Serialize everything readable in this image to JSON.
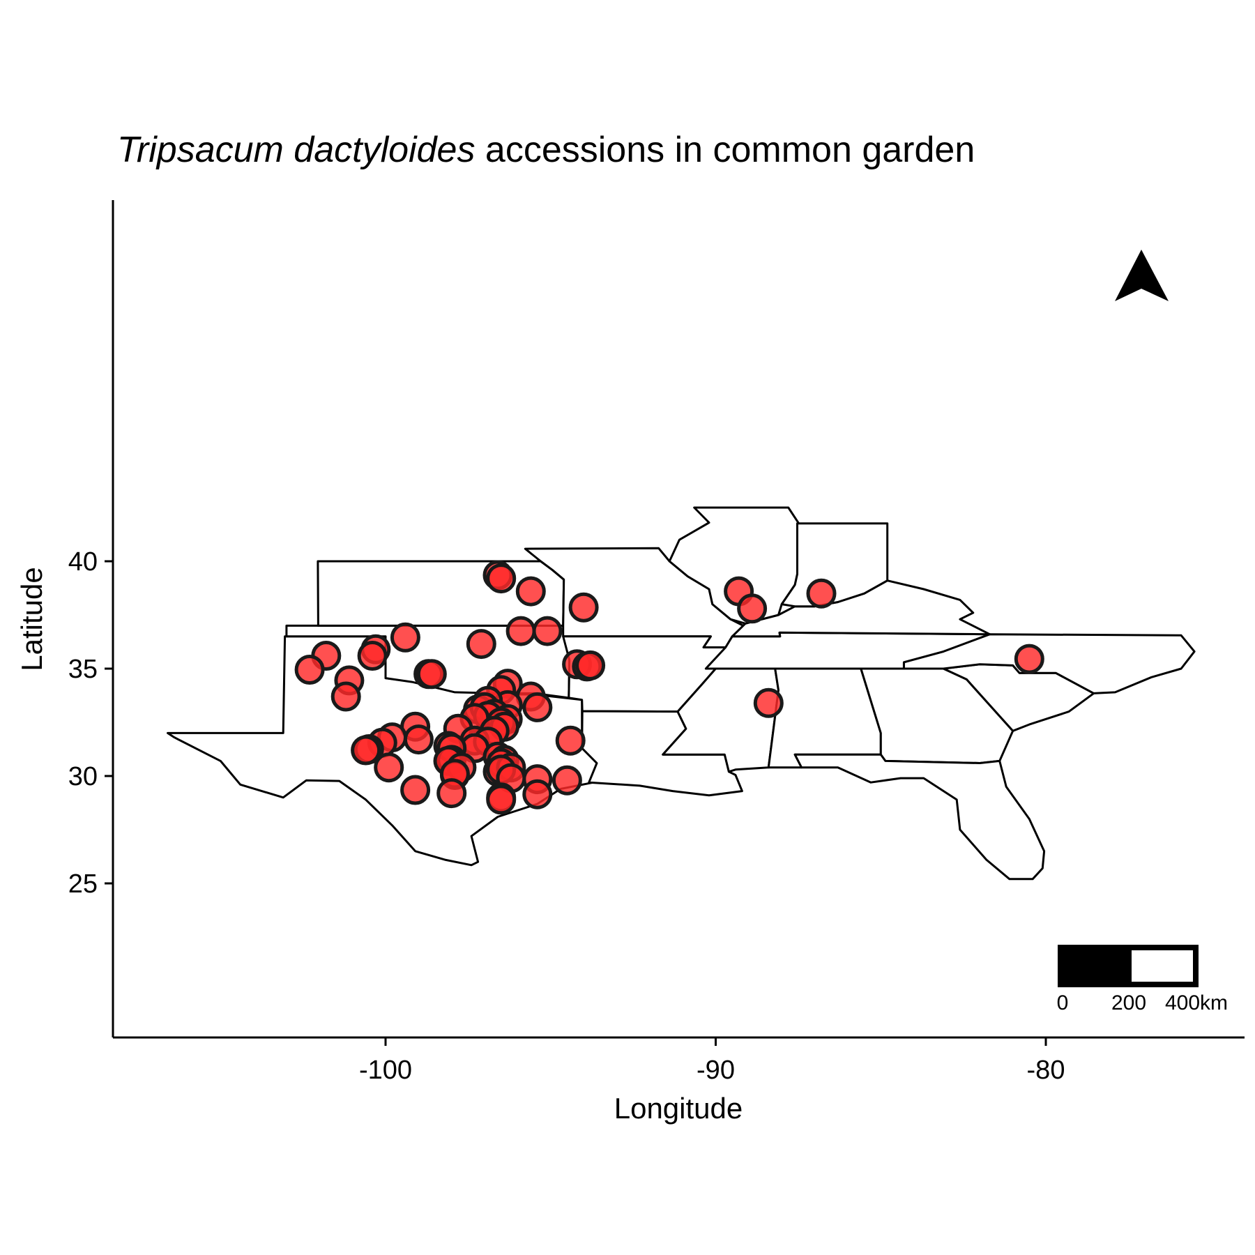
{
  "title": {
    "species": "Tripsacum dactyloides",
    "rest": " accessions in common garden"
  },
  "axes": {
    "xlabel": "Longitude",
    "ylabel": "Latitude",
    "xticks": [
      -100,
      -90,
      -80
    ],
    "xtick_labels": [
      "-100",
      "-90",
      "-80"
    ],
    "yticks": [
      25,
      30,
      35,
      40
    ],
    "ytick_labels": [
      "25",
      "30",
      "35",
      "40"
    ],
    "xlim": [
      -108.2,
      -74.6
    ],
    "ylim": [
      24.0,
      43.3
    ]
  },
  "scale_bar": {
    "labels": [
      "0",
      "200",
      "400km"
    ]
  },
  "north_arrow": "north-arrow-icon",
  "colors": {
    "point_fill": "#ff2a2a",
    "point_stroke": "#1a1a1a",
    "border": "#000000"
  },
  "chart_data": {
    "type": "scatter",
    "title": "Tripsacum dactyloides accessions in common garden",
    "xlabel": "Longitude",
    "ylabel": "Latitude",
    "xlim": [
      -108.2,
      -74.6
    ],
    "ylim": [
      24.0,
      43.3
    ],
    "grid": false,
    "points": [
      {
        "lon": -96.6,
        "lat": 39.35
      },
      {
        "lon": -96.5,
        "lat": 39.2
      },
      {
        "lon": -95.6,
        "lat": 38.6
      },
      {
        "lon": -94.0,
        "lat": 37.85
      },
      {
        "lon": -95.9,
        "lat": 36.75
      },
      {
        "lon": -95.1,
        "lat": 36.75
      },
      {
        "lon": -97.1,
        "lat": 36.15
      },
      {
        "lon": -99.4,
        "lat": 36.45
      },
      {
        "lon": -100.3,
        "lat": 35.9
      },
      {
        "lon": -100.4,
        "lat": 35.6
      },
      {
        "lon": -101.8,
        "lat": 35.6
      },
      {
        "lon": -102.3,
        "lat": 34.95
      },
      {
        "lon": -101.1,
        "lat": 34.45
      },
      {
        "lon": -101.2,
        "lat": 33.7
      },
      {
        "lon": -98.7,
        "lat": 34.75
      },
      {
        "lon": -98.6,
        "lat": 34.75
      },
      {
        "lon": -94.2,
        "lat": 35.2
      },
      {
        "lon": -93.9,
        "lat": 35.1
      },
      {
        "lon": -93.8,
        "lat": 35.15
      },
      {
        "lon": -89.3,
        "lat": 38.6
      },
      {
        "lon": -88.9,
        "lat": 37.8
      },
      {
        "lon": -86.8,
        "lat": 38.5
      },
      {
        "lon": -88.4,
        "lat": 33.4
      },
      {
        "lon": -80.5,
        "lat": 35.45
      },
      {
        "lon": -96.3,
        "lat": 34.3
      },
      {
        "lon": -96.5,
        "lat": 34.0
      },
      {
        "lon": -95.6,
        "lat": 33.7
      },
      {
        "lon": -95.4,
        "lat": 33.2
      },
      {
        "lon": -96.3,
        "lat": 33.3
      },
      {
        "lon": -96.9,
        "lat": 33.5
      },
      {
        "lon": -97.2,
        "lat": 33.1
      },
      {
        "lon": -97.0,
        "lat": 33.2
      },
      {
        "lon": -96.7,
        "lat": 32.9
      },
      {
        "lon": -96.9,
        "lat": 32.8
      },
      {
        "lon": -97.3,
        "lat": 32.7
      },
      {
        "lon": -96.3,
        "lat": 32.65
      },
      {
        "lon": -96.5,
        "lat": 32.5
      },
      {
        "lon": -96.4,
        "lat": 32.3
      },
      {
        "lon": -96.7,
        "lat": 32.1
      },
      {
        "lon": -97.8,
        "lat": 32.2
      },
      {
        "lon": -99.1,
        "lat": 32.3
      },
      {
        "lon": -99.8,
        "lat": 31.8
      },
      {
        "lon": -99.0,
        "lat": 31.7
      },
      {
        "lon": -100.1,
        "lat": 31.55
      },
      {
        "lon": -100.5,
        "lat": 31.25
      },
      {
        "lon": -100.6,
        "lat": 31.2
      },
      {
        "lon": -97.3,
        "lat": 31.65
      },
      {
        "lon": -96.9,
        "lat": 31.6
      },
      {
        "lon": -97.3,
        "lat": 31.3
      },
      {
        "lon": -98.1,
        "lat": 31.4
      },
      {
        "lon": -98.0,
        "lat": 31.3
      },
      {
        "lon": -98.0,
        "lat": 30.75
      },
      {
        "lon": -98.1,
        "lat": 30.7
      },
      {
        "lon": -97.7,
        "lat": 30.4
      },
      {
        "lon": -97.9,
        "lat": 30.05
      },
      {
        "lon": -97.9,
        "lat": 30.1
      },
      {
        "lon": -96.6,
        "lat": 30.9
      },
      {
        "lon": -96.4,
        "lat": 30.75
      },
      {
        "lon": -96.5,
        "lat": 30.6
      },
      {
        "lon": -96.6,
        "lat": 30.2
      },
      {
        "lon": -96.2,
        "lat": 30.4
      },
      {
        "lon": -96.5,
        "lat": 30.3
      },
      {
        "lon": -96.2,
        "lat": 29.9
      },
      {
        "lon": -95.4,
        "lat": 29.85
      },
      {
        "lon": -94.5,
        "lat": 29.8
      },
      {
        "lon": -94.4,
        "lat": 31.65
      },
      {
        "lon": -99.9,
        "lat": 30.4
      },
      {
        "lon": -99.1,
        "lat": 29.35
      },
      {
        "lon": -98.0,
        "lat": 29.2
      },
      {
        "lon": -95.4,
        "lat": 29.15
      },
      {
        "lon": -96.5,
        "lat": 29.0
      },
      {
        "lon": -96.5,
        "lat": 28.9
      }
    ]
  }
}
